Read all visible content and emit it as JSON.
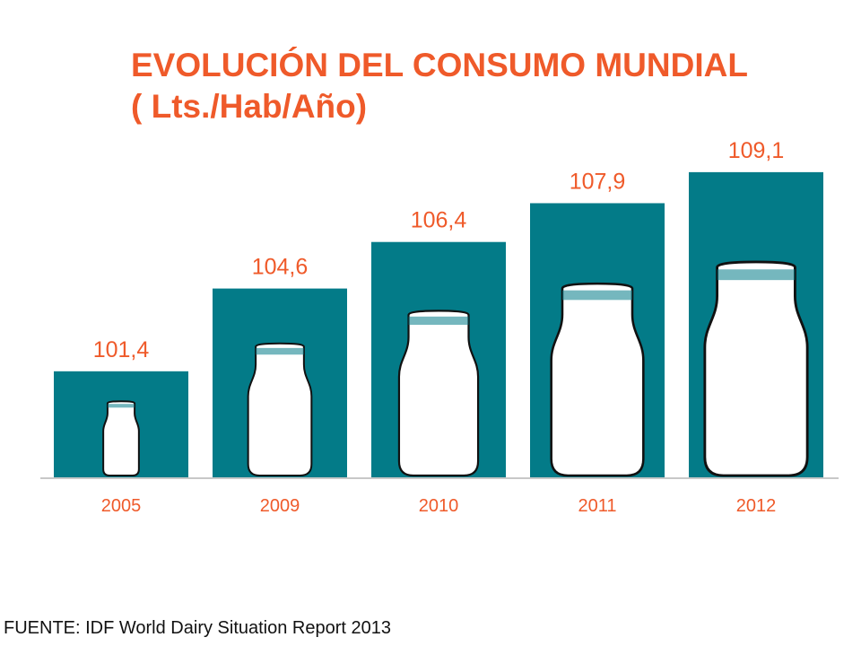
{
  "title_line1": "EVOLUCIÓN DEL CONSUMO MUNDIAL",
  "title_line2": "( Lts./Hab/Año)",
  "source": "FUENTE: IDF World Dairy Situation Report 2013",
  "colors": {
    "bar": "#037b88",
    "label": "#ef5a2a",
    "bottle_fill": "#ffffff",
    "bottle_outline": "#111111",
    "axis": "#c8c8c8"
  },
  "chart_data": {
    "type": "bar",
    "title": "EVOLUCIÓN DEL CONSUMO MUNDIAL ( Lts./Hab/Año)",
    "categories": [
      "2005",
      "2009",
      "2010",
      "2011",
      "2012"
    ],
    "values": [
      101.4,
      104.6,
      106.4,
      107.9,
      109.1
    ],
    "value_labels": [
      "101,4",
      "104,6",
      "106,4",
      "107,9",
      "109,1"
    ],
    "ylim": [
      97.3,
      110.9
    ],
    "grid": false,
    "legend": "none",
    "decoration": "milk-bottle-icon"
  }
}
